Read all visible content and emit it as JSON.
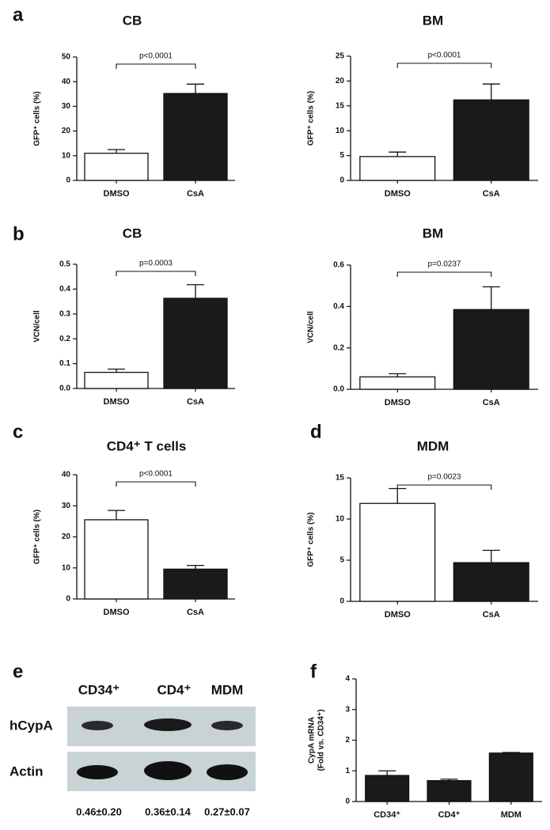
{
  "panel_labels": [
    "a",
    "b",
    "c",
    "d",
    "e",
    "f"
  ],
  "chart_data": [
    {
      "type": "bar",
      "title": "CB",
      "ylabel": [
        "GFP⁺ cells (%)"
      ],
      "annotation": "p<0.0001",
      "categories": [
        "DMSO",
        "CsA"
      ],
      "values": [
        11,
        35.2
      ],
      "errors": [
        1.5,
        3.8
      ],
      "colors": [
        "#ffffff",
        "#1a1a1a"
      ],
      "ylim": [
        0,
        50
      ],
      "yticks": [
        0,
        10,
        20,
        30,
        40,
        50
      ]
    },
    {
      "type": "bar",
      "title": "BM",
      "ylabel": [
        "GFP⁺ cells (%)"
      ],
      "annotation": "p<0.0001",
      "categories": [
        "DMSO",
        "CsA"
      ],
      "values": [
        4.8,
        16.2
      ],
      "errors": [
        0.9,
        3.2
      ],
      "colors": [
        "#ffffff",
        "#1a1a1a"
      ],
      "ylim": [
        0,
        25
      ],
      "yticks": [
        0,
        5,
        10,
        15,
        20,
        25
      ]
    },
    {
      "type": "bar",
      "title": "CB",
      "ylabel": [
        "VCN/cell"
      ],
      "annotation": "p=0.0003",
      "categories": [
        "DMSO",
        "CsA"
      ],
      "values": [
        0.065,
        0.363
      ],
      "errors": [
        0.013,
        0.055
      ],
      "colors": [
        "#ffffff",
        "#1a1a1a"
      ],
      "ylim": [
        0,
        0.5
      ],
      "yticks": [
        {
          "value": 0,
          "label": "0.0"
        },
        0.1,
        0.2,
        0.3,
        0.4,
        0.5
      ]
    },
    {
      "type": "bar",
      "title": "BM",
      "ylabel": [
        "VCN/cell"
      ],
      "annotation": "p=0.0237",
      "categories": [
        "DMSO",
        "CsA"
      ],
      "values": [
        0.06,
        0.385
      ],
      "errors": [
        0.015,
        0.11
      ],
      "colors": [
        "#ffffff",
        "#1a1a1a"
      ],
      "ylim": [
        0,
        0.6
      ],
      "yticks": [
        {
          "value": 0,
          "label": "0.0"
        },
        0.2,
        0.4,
        0.6
      ]
    },
    {
      "type": "bar",
      "title": "CD4⁺ T cells",
      "ylabel": [
        "GFP⁺ cells (%)"
      ],
      "annotation": "p<0.0001",
      "categories": [
        "DMSO",
        "CsA"
      ],
      "values": [
        25.5,
        9.6
      ],
      "errors": [
        3,
        1.2
      ],
      "colors": [
        "#ffffff",
        "#1a1a1a"
      ],
      "ylim": [
        0,
        40
      ],
      "yticks": [
        0,
        10,
        20,
        30,
        40
      ]
    },
    {
      "type": "bar",
      "title": "MDM",
      "ylabel": [
        "GFP⁺ cells (%)"
      ],
      "annotation": "p=0.0023",
      "categories": [
        "DMSO",
        "CsA"
      ],
      "values": [
        11.9,
        4.7
      ],
      "errors": [
        1.8,
        1.5
      ],
      "colors": [
        "#ffffff",
        "#1a1a1a"
      ],
      "ylim": [
        0,
        15
      ],
      "yticks": [
        0,
        5,
        10,
        15
      ]
    },
    {
      "type": "bar",
      "ylabel": [
        "CypA mRNA",
        "(Fold vs. CD34⁺)"
      ],
      "categories": [
        "CD34⁺",
        "CD4⁺",
        "MDM"
      ],
      "values": [
        0.85,
        0.68,
        1.58
      ],
      "errors": [
        0.15,
        0.05,
        0.02
      ],
      "colors": [
        "#1a1a1a",
        "#1a1a1a",
        "#1a1a1a"
      ],
      "ylim": [
        0,
        4
      ],
      "yticks": [
        0,
        1,
        2,
        3,
        4
      ]
    }
  ],
  "blot": {
    "columns": [
      "CD34⁺",
      "CD4⁺",
      "MDM"
    ],
    "rows": [
      "hCypA",
      "Actin"
    ],
    "quantification": [
      "0.46±0.20",
      "0.36±0.14",
      "0.27±0.07"
    ]
  }
}
